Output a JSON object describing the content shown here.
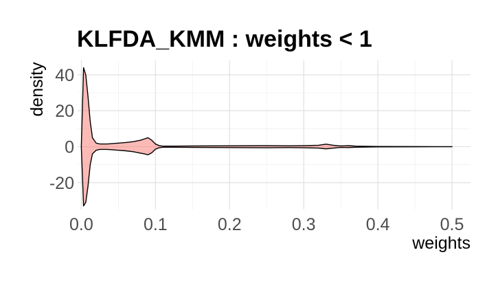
{
  "chart_data": {
    "type": "area",
    "title": "KLFDA_KMM : weights < 1",
    "xlabel": "weights",
    "ylabel": "density",
    "xlim": [
      -0.005,
      0.525
    ],
    "ylim": [
      -35,
      48
    ],
    "x_ticks": [
      0.0,
      0.1,
      0.2,
      0.3,
      0.4,
      0.5
    ],
    "x_tick_labels": [
      "0.0",
      "0.1",
      "0.2",
      "0.3",
      "0.4",
      "0.5"
    ],
    "y_ticks": [
      -20,
      0,
      20,
      40
    ],
    "y_tick_labels": [
      "-20",
      "0",
      "20",
      "40"
    ],
    "grid": true,
    "legend": "none",
    "fill_color": "#f8766d",
    "series": [
      {
        "upper": {
          "x": [
            0.0,
            0.003,
            0.006,
            0.009,
            0.012,
            0.015,
            0.02,
            0.025,
            0.035,
            0.05,
            0.06,
            0.07,
            0.08,
            0.085,
            0.09,
            0.095,
            0.1,
            0.105,
            0.11,
            0.12,
            0.15,
            0.2,
            0.25,
            0.28,
            0.3,
            0.32,
            0.33,
            0.34,
            0.35,
            0.36,
            0.37,
            0.4,
            0.45,
            0.5
          ],
          "y": [
            0,
            44,
            40,
            28,
            14,
            5,
            2,
            1.5,
            1.5,
            2,
            2.3,
            2.8,
            3.6,
            4.3,
            5,
            3.6,
            1.5,
            0.6,
            0.3,
            0.3,
            0.4,
            0.5,
            0.6,
            0.5,
            0.6,
            0.8,
            1.4,
            0.8,
            0.4,
            0.6,
            0.3,
            0.1,
            0.05,
            0.02
          ]
        },
        "lower": {
          "x": [
            0.0,
            0.003,
            0.006,
            0.009,
            0.012,
            0.015,
            0.02,
            0.025,
            0.035,
            0.05,
            0.06,
            0.07,
            0.08,
            0.085,
            0.09,
            0.095,
            0.1,
            0.105,
            0.11,
            0.12,
            0.15,
            0.2,
            0.25,
            0.28,
            0.3,
            0.32,
            0.33,
            0.34,
            0.35,
            0.36,
            0.37,
            0.4,
            0.45,
            0.5
          ],
          "y": [
            0,
            -33,
            -31,
            -22,
            -10,
            -4,
            -2,
            -1.5,
            -1.5,
            -2,
            -2.3,
            -2.8,
            -3.6,
            -4,
            -4.5,
            -3.4,
            -1.4,
            -0.6,
            -0.3,
            -0.3,
            -0.4,
            -0.5,
            -0.6,
            -0.5,
            -0.6,
            -0.8,
            -1.2,
            -0.8,
            -0.4,
            -0.5,
            -0.3,
            -0.1,
            -0.05,
            -0.02
          ]
        }
      }
    ]
  }
}
